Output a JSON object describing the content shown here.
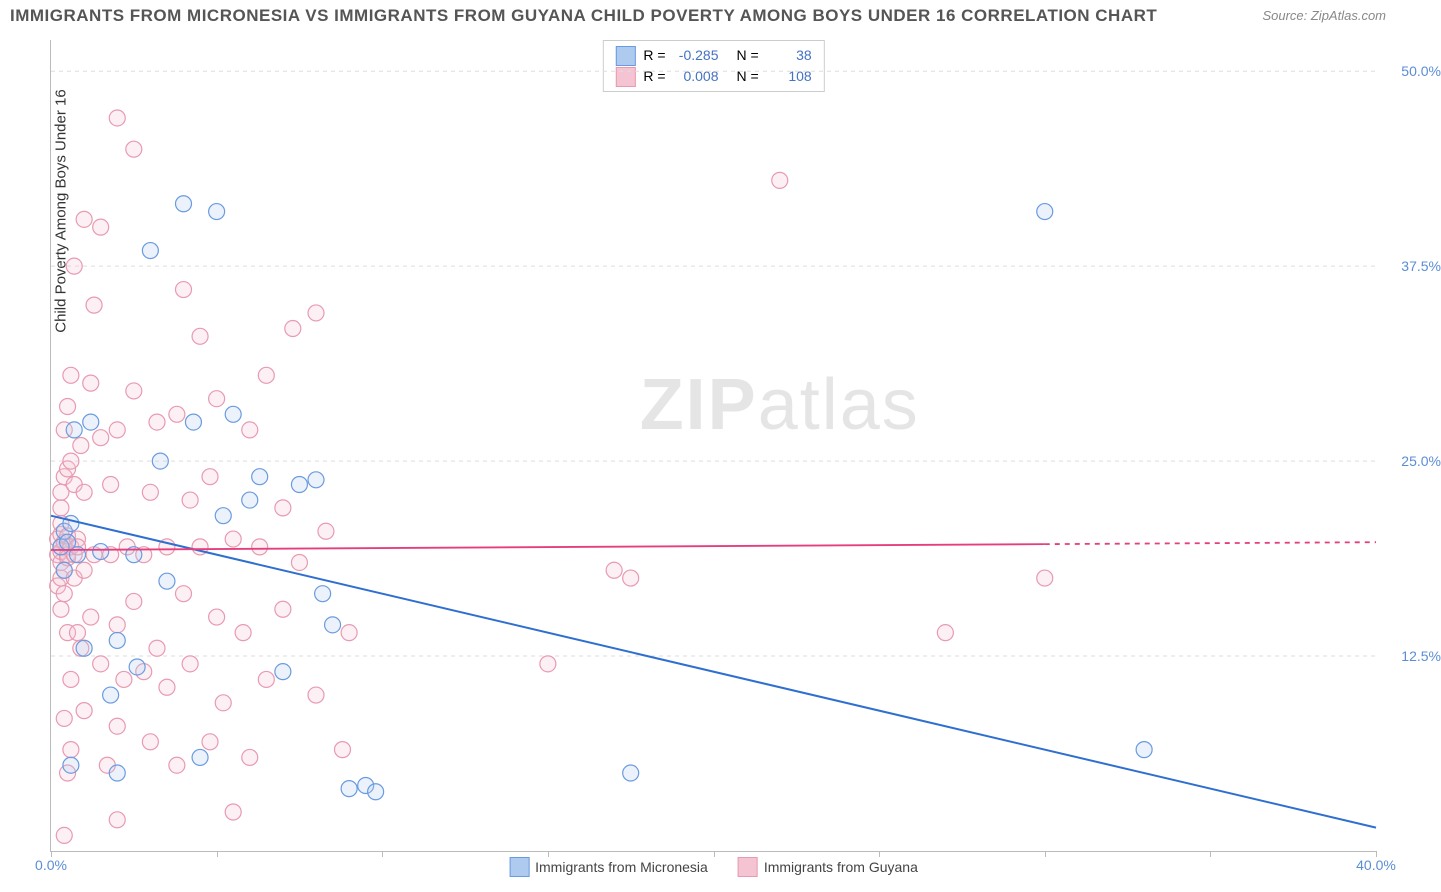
{
  "title": "IMMIGRANTS FROM MICRONESIA VS IMMIGRANTS FROM GUYANA CHILD POVERTY AMONG BOYS UNDER 16 CORRELATION CHART",
  "source": "Source: ZipAtlas.com",
  "ylabel": "Child Poverty Among Boys Under 16",
  "watermark_bold": "ZIP",
  "watermark_light": "atlas",
  "chart": {
    "type": "scatter",
    "xlim": [
      0,
      40
    ],
    "ylim": [
      0,
      52
    ],
    "x_ticks": [
      0,
      20,
      40
    ],
    "x_tick_labels": [
      "0.0%",
      "",
      "40.0%"
    ],
    "x_minor_ticks": [
      5,
      10,
      15,
      25,
      30,
      35
    ],
    "y_ticks": [
      12.5,
      25.0,
      37.5,
      50.0
    ],
    "y_tick_labels": [
      "12.5%",
      "25.0%",
      "37.5%",
      "50.0%"
    ],
    "grid_color": "#dddddd",
    "background_color": "#ffffff",
    "axis_color": "#bbbbbb",
    "marker_radius": 8,
    "marker_stroke_width": 1.2,
    "marker_fill_opacity": 0.25,
    "series": [
      {
        "name": "Immigrants from Micronesia",
        "color_stroke": "#6a9be0",
        "color_fill": "#aecbef",
        "R": "-0.285",
        "N": "38",
        "trend": {
          "y_at_x0": 21.5,
          "y_at_x40": 1.5,
          "line_color": "#2f6fd0",
          "line_width": 2
        },
        "points": [
          [
            0.3,
            19.5
          ],
          [
            0.4,
            18.0
          ],
          [
            0.4,
            20.5
          ],
          [
            0.5,
            19.8
          ],
          [
            0.6,
            21.0
          ],
          [
            0.6,
            5.5
          ],
          [
            0.7,
            27.0
          ],
          [
            0.8,
            19.0
          ],
          [
            1.0,
            13.0
          ],
          [
            1.2,
            27.5
          ],
          [
            1.5,
            19.2
          ],
          [
            1.8,
            10.0
          ],
          [
            2.0,
            5.0
          ],
          [
            2.0,
            13.5
          ],
          [
            2.5,
            19.0
          ],
          [
            2.6,
            11.8
          ],
          [
            3.0,
            38.5
          ],
          [
            3.3,
            25.0
          ],
          [
            3.5,
            17.3
          ],
          [
            4.0,
            41.5
          ],
          [
            4.3,
            27.5
          ],
          [
            4.5,
            6.0
          ],
          [
            5.0,
            41.0
          ],
          [
            5.2,
            21.5
          ],
          [
            5.5,
            28.0
          ],
          [
            6.0,
            22.5
          ],
          [
            6.3,
            24.0
          ],
          [
            7.0,
            11.5
          ],
          [
            7.5,
            23.5
          ],
          [
            8.0,
            23.8
          ],
          [
            8.2,
            16.5
          ],
          [
            8.5,
            14.5
          ],
          [
            9.0,
            4.0
          ],
          [
            9.5,
            4.2
          ],
          [
            9.8,
            3.8
          ],
          [
            17.5,
            5.0
          ],
          [
            33.0,
            6.5
          ],
          [
            30.0,
            41.0
          ]
        ]
      },
      {
        "name": "Immigrants from Guyana",
        "color_stroke": "#e89ab0",
        "color_fill": "#f5c4d2",
        "R": "0.008",
        "N": "108",
        "trend": {
          "y_at_x0": 19.3,
          "y_at_x40": 19.8,
          "line_color": "#e63e7c",
          "line_width": 1.8,
          "dash_after_x": 30
        },
        "points": [
          [
            0.2,
            17.0
          ],
          [
            0.2,
            19.0
          ],
          [
            0.2,
            20.0
          ],
          [
            0.3,
            18.5
          ],
          [
            0.3,
            19.2
          ],
          [
            0.3,
            20.3
          ],
          [
            0.3,
            22.0
          ],
          [
            0.3,
            17.5
          ],
          [
            0.3,
            23.0
          ],
          [
            0.3,
            15.5
          ],
          [
            0.3,
            19.5
          ],
          [
            0.3,
            21.0
          ],
          [
            0.4,
            18.0
          ],
          [
            0.4,
            16.5
          ],
          [
            0.4,
            24.0
          ],
          [
            0.4,
            8.5
          ],
          [
            0.4,
            1.0
          ],
          [
            0.4,
            19.8
          ],
          [
            0.4,
            27.0
          ],
          [
            0.5,
            19.0
          ],
          [
            0.5,
            20.2
          ],
          [
            0.5,
            14.0
          ],
          [
            0.5,
            24.5
          ],
          [
            0.5,
            5.0
          ],
          [
            0.5,
            18.8
          ],
          [
            0.5,
            28.5
          ],
          [
            0.6,
            19.5
          ],
          [
            0.6,
            11.0
          ],
          [
            0.6,
            25.0
          ],
          [
            0.6,
            30.5
          ],
          [
            0.6,
            6.5
          ],
          [
            0.7,
            19.0
          ],
          [
            0.7,
            17.5
          ],
          [
            0.7,
            23.5
          ],
          [
            0.7,
            37.5
          ],
          [
            0.8,
            20.0
          ],
          [
            0.8,
            14.0
          ],
          [
            0.8,
            19.5
          ],
          [
            0.9,
            26.0
          ],
          [
            0.9,
            13.0
          ],
          [
            1.0,
            23.0
          ],
          [
            1.0,
            9.0
          ],
          [
            1.0,
            40.5
          ],
          [
            1.0,
            18.0
          ],
          [
            1.2,
            15.0
          ],
          [
            1.2,
            30.0
          ],
          [
            1.3,
            19.0
          ],
          [
            1.3,
            35.0
          ],
          [
            1.5,
            26.5
          ],
          [
            1.5,
            12.0
          ],
          [
            1.5,
            40.0
          ],
          [
            1.7,
            5.5
          ],
          [
            1.8,
            19.0
          ],
          [
            1.8,
            23.5
          ],
          [
            2.0,
            47.0
          ],
          [
            2.0,
            14.5
          ],
          [
            2.0,
            27.0
          ],
          [
            2.0,
            8.0
          ],
          [
            2.0,
            2.0
          ],
          [
            2.2,
            11.0
          ],
          [
            2.3,
            19.5
          ],
          [
            2.5,
            45.0
          ],
          [
            2.5,
            16.0
          ],
          [
            2.5,
            29.5
          ],
          [
            2.8,
            11.5
          ],
          [
            2.8,
            19.0
          ],
          [
            3.0,
            7.0
          ],
          [
            3.0,
            23.0
          ],
          [
            3.2,
            13.0
          ],
          [
            3.2,
            27.5
          ],
          [
            3.5,
            10.5
          ],
          [
            3.5,
            19.5
          ],
          [
            3.8,
            5.5
          ],
          [
            3.8,
            28.0
          ],
          [
            4.0,
            16.5
          ],
          [
            4.0,
            36.0
          ],
          [
            4.2,
            12.0
          ],
          [
            4.2,
            22.5
          ],
          [
            4.5,
            33.0
          ],
          [
            4.5,
            19.5
          ],
          [
            4.8,
            7.0
          ],
          [
            4.8,
            24.0
          ],
          [
            5.0,
            15.0
          ],
          [
            5.0,
            29.0
          ],
          [
            5.2,
            9.5
          ],
          [
            5.5,
            20.0
          ],
          [
            5.5,
            2.5
          ],
          [
            5.8,
            14.0
          ],
          [
            6.0,
            27.0
          ],
          [
            6.0,
            6.0
          ],
          [
            6.3,
            19.5
          ],
          [
            6.5,
            30.5
          ],
          [
            6.5,
            11.0
          ],
          [
            7.0,
            15.5
          ],
          [
            7.0,
            22.0
          ],
          [
            7.3,
            33.5
          ],
          [
            7.5,
            18.5
          ],
          [
            8.0,
            10.0
          ],
          [
            8.0,
            34.5
          ],
          [
            8.3,
            20.5
          ],
          [
            8.8,
            6.5
          ],
          [
            9.0,
            14.0
          ],
          [
            15.0,
            12.0
          ],
          [
            17.0,
            18.0
          ],
          [
            17.5,
            17.5
          ],
          [
            27.0,
            14.0
          ],
          [
            30.0,
            17.5
          ],
          [
            22.0,
            43.0
          ]
        ]
      }
    ]
  },
  "legend": {
    "series1_label": "Immigrants from Micronesia",
    "series2_label": "Immigrants from Guyana"
  }
}
